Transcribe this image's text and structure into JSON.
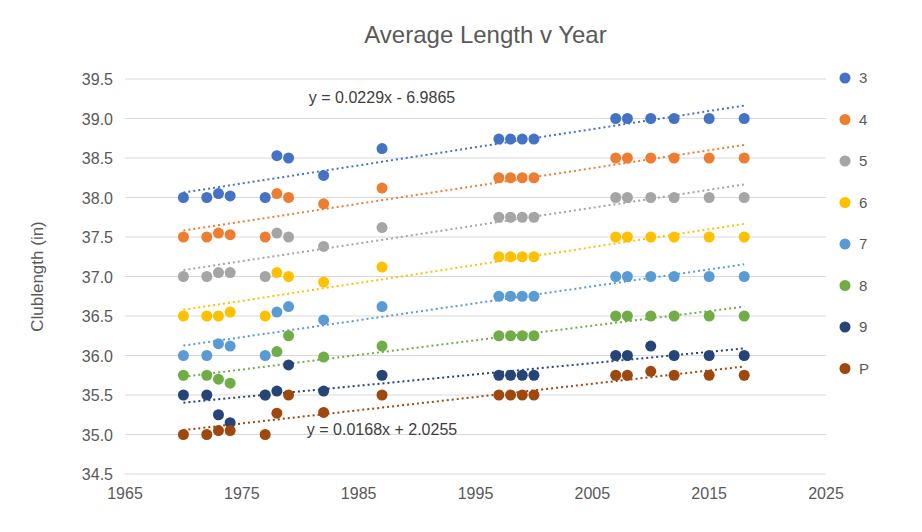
{
  "chart_data": {
    "type": "scatter",
    "title": "Average Length v Year",
    "y_label": "Clublength (in)",
    "x": [
      1970,
      1972,
      1973,
      1974,
      1977,
      1978,
      1979,
      1982,
      1987,
      1997,
      1998,
      1999,
      2000,
      2007,
      2008,
      2010,
      2012,
      2015,
      2018
    ],
    "series": [
      {
        "name": "3",
        "color": "#4472c4",
        "marker": "circle",
        "line_style": "dotted",
        "values": [
          38.0,
          38.0,
          38.05,
          38.02,
          38.0,
          38.53,
          38.5,
          38.28,
          38.62,
          38.74,
          38.74,
          38.74,
          38.74,
          39.0,
          39.0,
          39.0,
          39.0,
          39.0,
          39.0
        ]
      },
      {
        "name": "4",
        "color": "#ed7d31",
        "marker": "circle",
        "line_style": "dotted",
        "values": [
          37.5,
          37.5,
          37.55,
          37.53,
          37.5,
          38.05,
          38.0,
          37.92,
          38.12,
          38.25,
          38.25,
          38.25,
          38.25,
          38.5,
          38.5,
          38.5,
          38.5,
          38.5,
          38.5
        ]
      },
      {
        "name": "5",
        "color": "#a5a5a5",
        "marker": "circle",
        "line_style": "dotted",
        "values": [
          37.0,
          37.0,
          37.05,
          37.05,
          37.0,
          37.55,
          37.5,
          37.38,
          37.62,
          37.75,
          37.75,
          37.75,
          37.75,
          38.0,
          38.0,
          38.0,
          38.0,
          38.0,
          38.0
        ]
      },
      {
        "name": "6",
        "color": "#ffc000",
        "marker": "circle",
        "line_style": "dotted",
        "values": [
          36.5,
          36.5,
          36.5,
          36.55,
          36.5,
          37.05,
          37.0,
          36.93,
          37.12,
          37.25,
          37.25,
          37.25,
          37.25,
          37.5,
          37.5,
          37.5,
          37.5,
          37.5,
          37.5
        ]
      },
      {
        "name": "7",
        "color": "#5b9bd5",
        "marker": "circle",
        "line_style": "dotted",
        "values": [
          36.0,
          36.0,
          36.15,
          36.12,
          36.0,
          36.55,
          36.62,
          36.45,
          36.62,
          36.75,
          36.75,
          36.75,
          36.75,
          37.0,
          37.0,
          37.0,
          37.0,
          37.0,
          37.0
        ]
      },
      {
        "name": "8",
        "color": "#70ad47",
        "marker": "circle",
        "line_style": "dotted",
        "values": [
          35.75,
          35.75,
          35.7,
          35.65,
          35.5,
          36.05,
          36.25,
          35.98,
          36.12,
          36.25,
          36.25,
          36.25,
          36.25,
          36.5,
          36.5,
          36.5,
          36.5,
          36.5,
          36.5
        ]
      },
      {
        "name": "9",
        "color": "#264478",
        "marker": "circle",
        "line_style": "dotted",
        "values": [
          35.5,
          35.5,
          35.25,
          35.15,
          35.5,
          35.55,
          35.88,
          35.55,
          35.75,
          35.75,
          35.75,
          35.75,
          35.75,
          36.0,
          36.0,
          36.12,
          36.0,
          36.0,
          36.0
        ]
      },
      {
        "name": "P",
        "color": "#9e480e",
        "marker": "circle",
        "line_style": "dotted",
        "values": [
          35.0,
          35.0,
          35.05,
          35.05,
          35.0,
          35.27,
          35.5,
          35.28,
          35.5,
          35.5,
          35.5,
          35.5,
          35.5,
          35.75,
          35.75,
          35.8,
          35.75,
          35.75,
          35.75
        ]
      }
    ],
    "annotations": [
      {
        "text": "y = 0.0229x - 6.9865",
        "x": 1987,
        "y": 39.19
      },
      {
        "text": "y = 0.0168x + 2.0255",
        "x": 1987,
        "y": 34.99
      }
    ],
    "xlim": [
      1965,
      2025
    ],
    "xticks": [
      1965,
      1975,
      1985,
      1995,
      2005,
      2015,
      2025
    ],
    "ylim": [
      34.5,
      39.5
    ],
    "yticks": [
      {
        "value": 34.5,
        "label": "34.5"
      },
      {
        "value": 35,
        "label": "35.0"
      },
      {
        "value": 35.5,
        "label": "35.5"
      },
      {
        "value": 36,
        "label": "36.0"
      },
      {
        "value": 36.5,
        "label": "36.5"
      },
      {
        "value": 37,
        "label": "37.0"
      },
      {
        "value": 37.5,
        "label": "37.5"
      },
      {
        "value": 38,
        "label": "38.0"
      },
      {
        "value": 38.5,
        "label": "38.5"
      },
      {
        "value": 39,
        "label": "39.0"
      },
      {
        "value": 39.5,
        "label": "39.5"
      }
    ],
    "grid": true,
    "legend": "right"
  }
}
